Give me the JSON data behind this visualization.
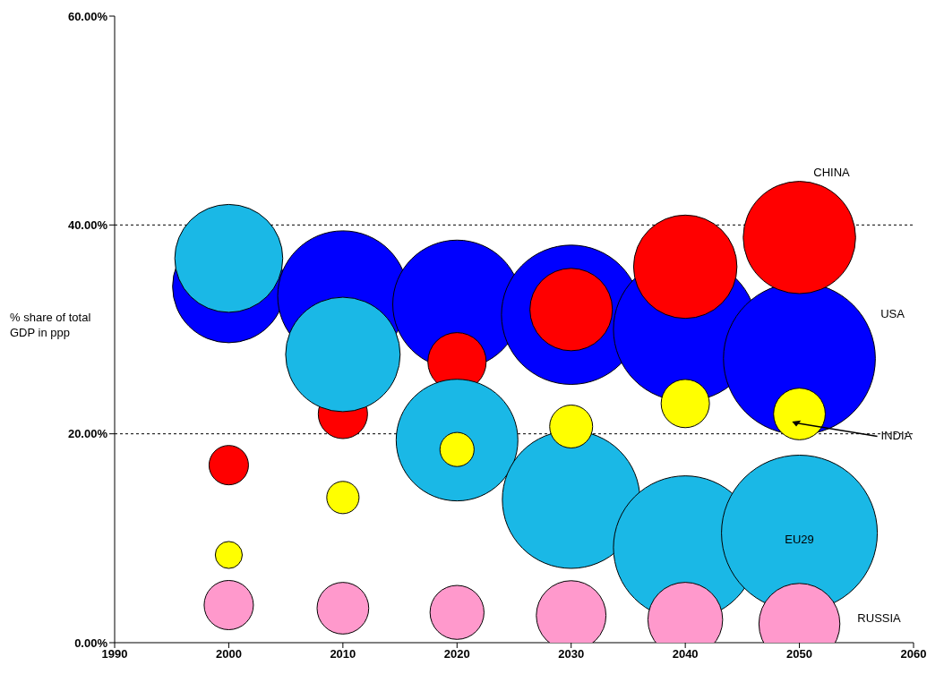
{
  "chart_data": {
    "type": "bubble",
    "ylabel": "% share of total GDP in ppp",
    "x": [
      2000,
      2010,
      2020,
      2030,
      2040,
      2050
    ],
    "series": [
      {
        "name": "USA",
        "color": "#0000ff",
        "values": [
          34.1,
          33.2,
          32.4,
          31.4,
          30.0,
          27.2
        ],
        "sizes": [
          0.52,
          0.7,
          0.68,
          0.8,
          0.85,
          0.95
        ]
      },
      {
        "name": "CHINA",
        "color": "#ff0000",
        "values": [
          17.0,
          21.9,
          26.9,
          31.9,
          36.0,
          38.8
        ],
        "sizes": [
          0.064,
          0.1,
          0.14,
          0.28,
          0.44,
          0.52
        ]
      },
      {
        "name": "EU29",
        "color": "#1ab8e6",
        "values": [
          36.8,
          27.6,
          19.4,
          13.7,
          9.1,
          10.5
        ],
        "sizes": [
          0.48,
          0.54,
          0.61,
          0.78,
          0.85,
          1.0
        ]
      },
      {
        "name": "INDIA",
        "color": "#ffff00",
        "values": [
          8.4,
          13.9,
          18.5,
          20.7,
          22.9,
          21.9
        ],
        "sizes": [
          0.03,
          0.043,
          0.048,
          0.076,
          0.096,
          0.11
        ]
      },
      {
        "name": "RUSSIA",
        "color": "#ff99cc",
        "values": [
          3.6,
          3.3,
          2.9,
          2.6,
          2.2,
          1.8
        ],
        "sizes": [
          0.1,
          0.11,
          0.12,
          0.2,
          0.23,
          0.27
        ]
      }
    ],
    "xlim": [
      1990,
      2060
    ],
    "xticks": [
      1990,
      2000,
      2010,
      2020,
      2030,
      2040,
      2050,
      2060
    ],
    "ylim": [
      0,
      60
    ],
    "yticks": [
      {
        "value": 0,
        "label": "0.00%"
      },
      {
        "value": 20,
        "label": "20.00%"
      },
      {
        "value": 40,
        "label": "40.00%"
      },
      {
        "value": 60,
        "label": "60.00%"
      }
    ],
    "grid": "y",
    "legend": false
  }
}
